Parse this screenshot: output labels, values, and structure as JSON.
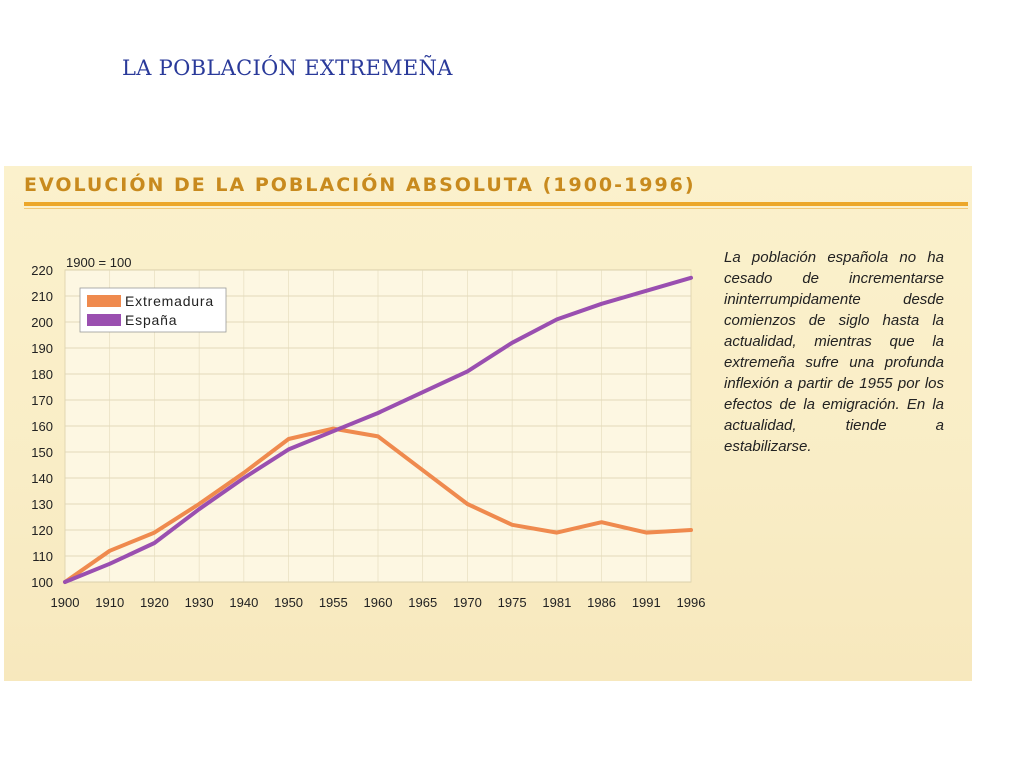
{
  "slide": {
    "title": "LA POBLACIÓN EXTREMEÑA"
  },
  "panel": {
    "title": "EVOLUCIÓN DE LA POBLACIÓN ABSOLUTA (1900-1996)",
    "description": "La población española no ha cesado de incrementarse ininterrumpidamente desde comienzos de siglo hasta la actualidad, mientras que la extremeña sufre una profunda inflexión a partir de 1955 por los efectos de la emigración. En la actualidad, tiende a estabilizarse."
  },
  "colors": {
    "extremadura": "#ef8a4e",
    "espana": "#9a4fb0",
    "accent": "#eca72a",
    "title_text": "#2a3a9a"
  },
  "chart_data": {
    "type": "line",
    "index_label": "1900 = 100",
    "categories": [
      "1900",
      "1910",
      "1920",
      "1930",
      "1940",
      "1950",
      "1955",
      "1960",
      "1965",
      "1970",
      "1975",
      "1981",
      "1986",
      "1991",
      "1996"
    ],
    "series": [
      {
        "name": "Extremadura",
        "values": [
          100,
          112,
          119,
          130,
          142,
          155,
          159,
          156,
          143,
          130,
          122,
          119,
          123,
          119,
          120
        ]
      },
      {
        "name": "España",
        "values": [
          100,
          107,
          115,
          128,
          140,
          151,
          158,
          165,
          173,
          181,
          192,
          201,
          207,
          212,
          217
        ]
      }
    ],
    "y_ticks": [
      100,
      110,
      120,
      130,
      140,
      150,
      160,
      170,
      180,
      190,
      200,
      210,
      220
    ],
    "ylim": [
      100,
      220
    ],
    "grid": true,
    "legend_position": "top-left"
  }
}
